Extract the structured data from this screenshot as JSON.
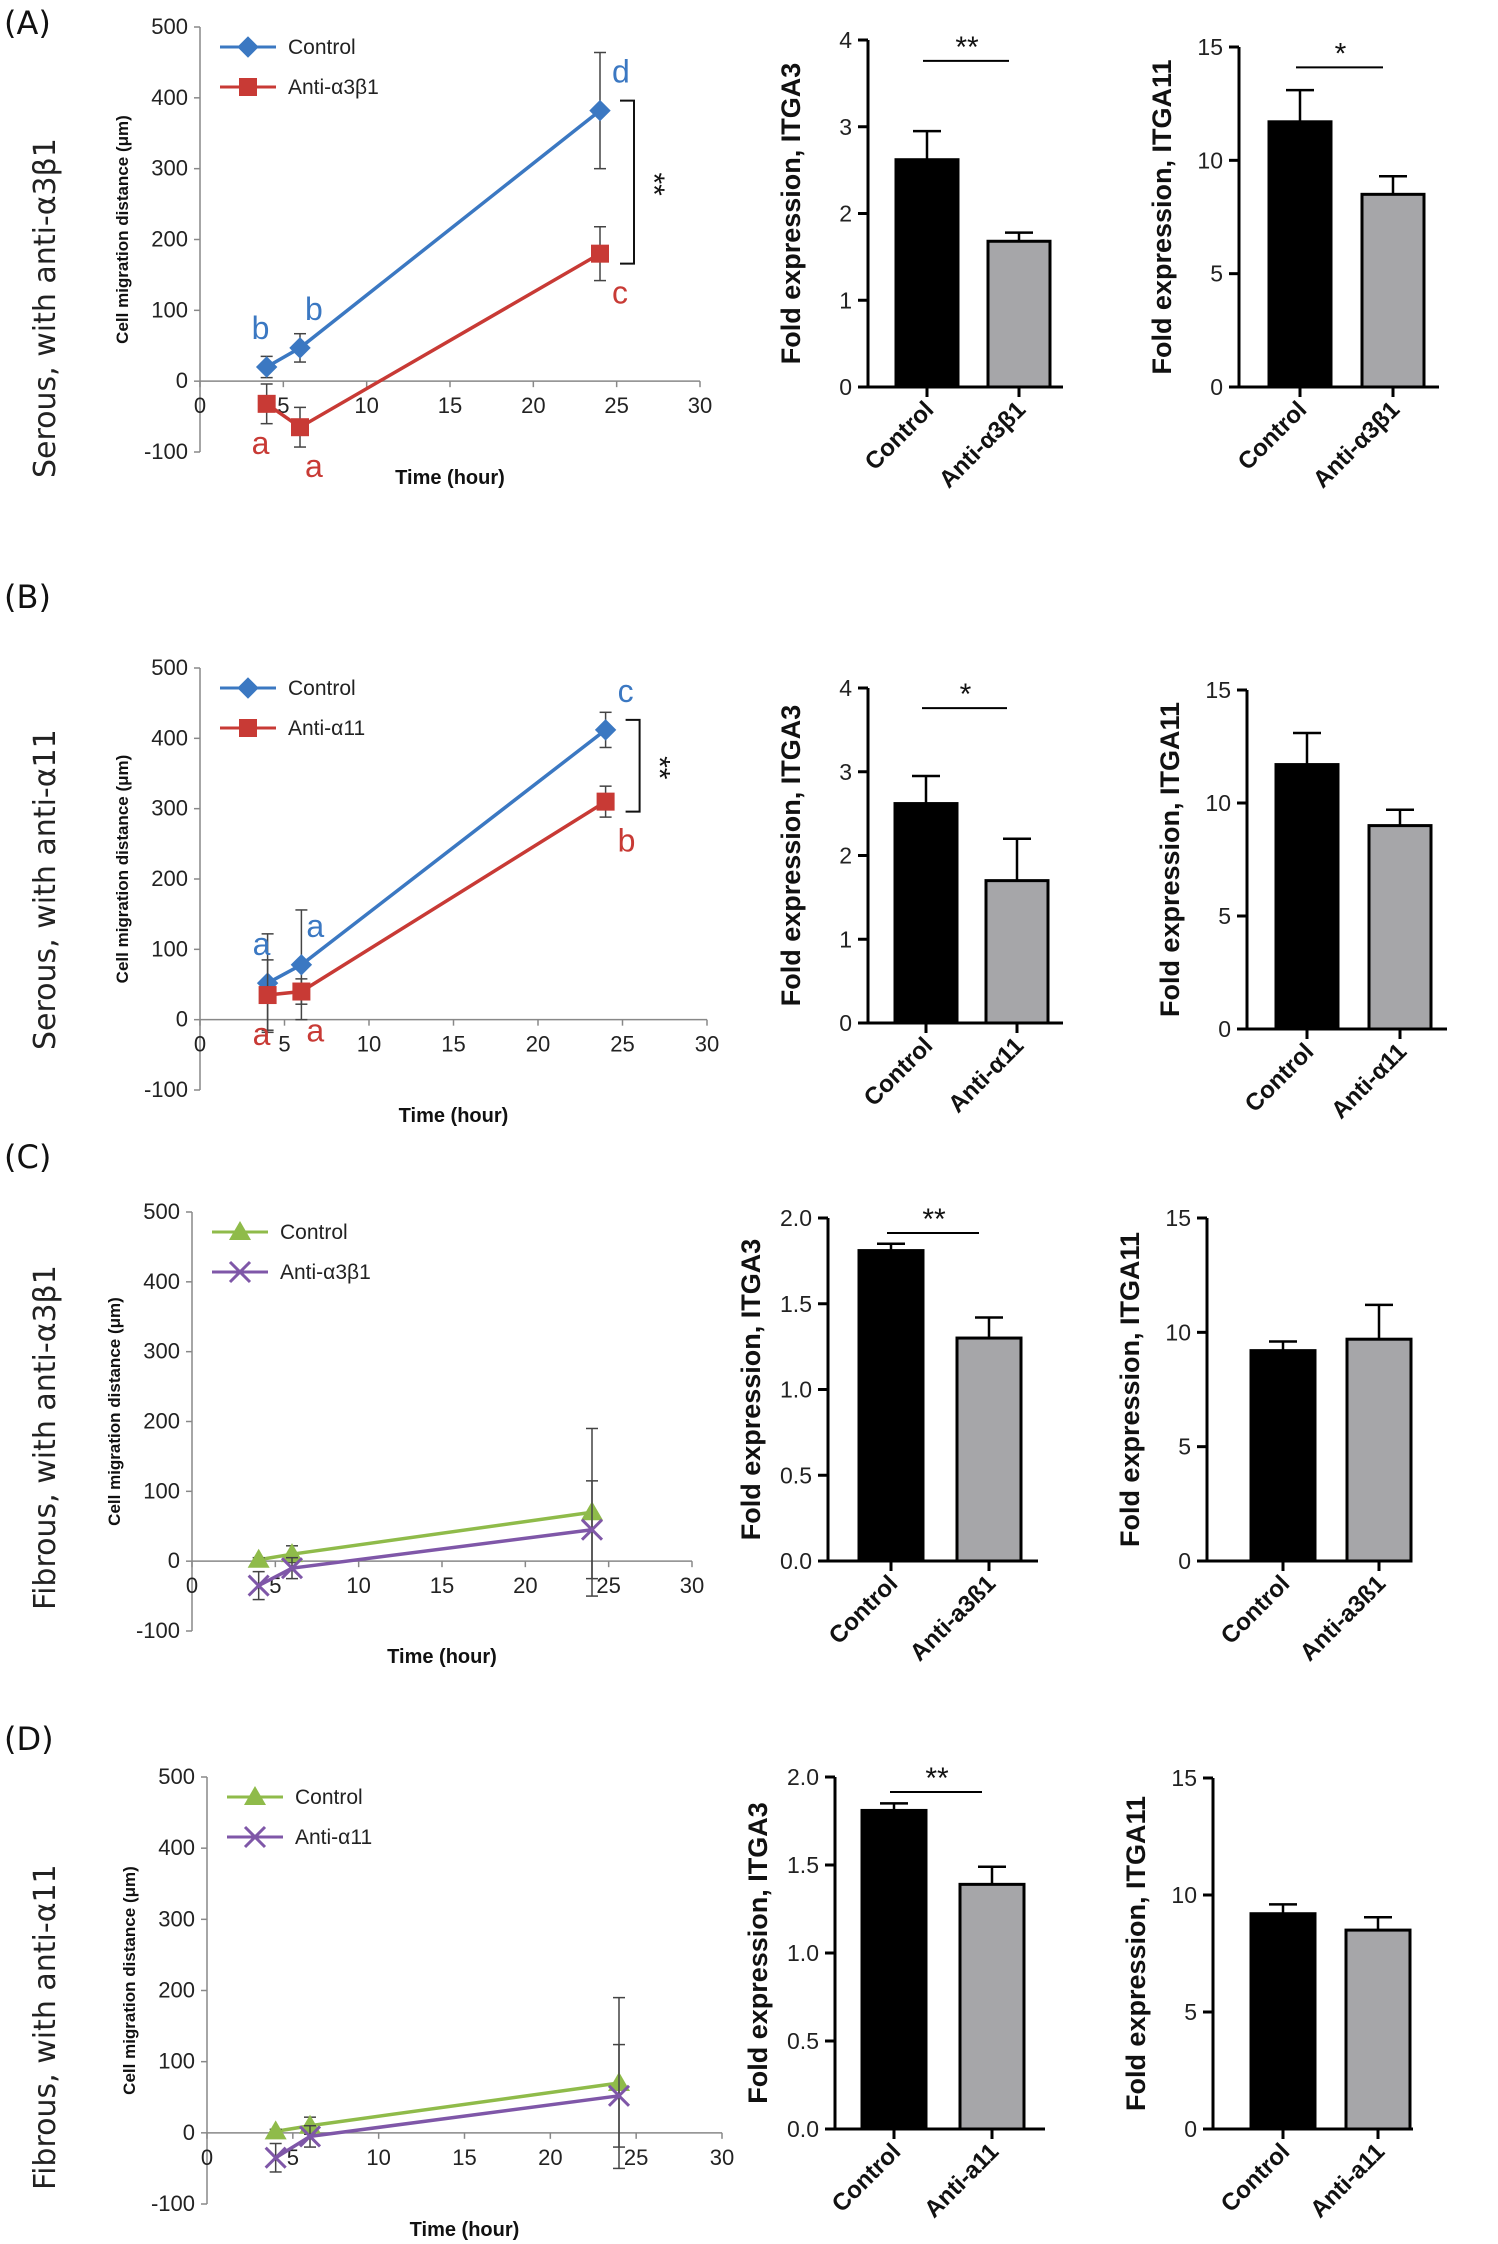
{
  "panels": [
    {
      "id": "A",
      "label": "(A)",
      "row_label": "Serous, with anti-α3β1"
    },
    {
      "id": "B",
      "label": "(B)",
      "row_label": "Serous, with anti-α11"
    },
    {
      "id": "C",
      "label": "(C)",
      "row_label": "Fibrous, with anti-α3β1"
    },
    {
      "id": "D",
      "label": "(D)",
      "row_label": "Fibrous, with anti-α11"
    }
  ],
  "chart_data": [
    {
      "panel": "A",
      "type": "line",
      "ylabel": "Cell migration distance (μm)",
      "xlabel": "Time (hour)",
      "xlim": [
        0,
        30
      ],
      "ylim": [
        -100,
        500
      ],
      "xticks": [
        0,
        5,
        10,
        15,
        20,
        25,
        30
      ],
      "yticks": [
        -100,
        0,
        100,
        200,
        300,
        400,
        500
      ],
      "series": [
        {
          "name": "Control",
          "color": "#3b78c2",
          "marker": "diamond",
          "x": [
            4,
            6,
            24
          ],
          "y": [
            20,
            47,
            382
          ],
          "err": [
            15,
            20,
            82
          ],
          "letters": [
            "b",
            "b",
            "d"
          ]
        },
        {
          "name": "Anti-α3β1",
          "color": "#c83a35",
          "marker": "square",
          "x": [
            4,
            6,
            24
          ],
          "y": [
            -32,
            -65,
            180
          ],
          "err": [
            28,
            28,
            38
          ],
          "letters": [
            "a",
            "a",
            "c"
          ]
        }
      ],
      "significance": "**"
    },
    {
      "panel": "A",
      "type": "bar",
      "ylabel": "Fold expression, ITGA3",
      "ylim": [
        0,
        4
      ],
      "yticks": [
        0,
        1,
        2,
        3,
        4
      ],
      "categories": [
        "Control",
        "Anti-α3β1"
      ],
      "values": [
        2.62,
        1.68
      ],
      "errors": [
        0.33,
        0.1
      ],
      "significance": "**"
    },
    {
      "panel": "A",
      "type": "bar",
      "ylabel": "Fold expression, ITGA11",
      "ylim": [
        0,
        15
      ],
      "yticks": [
        0,
        5,
        10,
        15
      ],
      "categories": [
        "Control",
        "Anti-α3β1"
      ],
      "values": [
        11.7,
        8.5
      ],
      "errors": [
        1.4,
        0.8
      ],
      "significance": "*"
    },
    {
      "panel": "B",
      "type": "line",
      "ylabel": "Cell migration distance (μm)",
      "xlabel": "Time (hour)",
      "xlim": [
        0,
        30
      ],
      "ylim": [
        -100,
        500
      ],
      "xticks": [
        0,
        5,
        10,
        15,
        20,
        25,
        30
      ],
      "yticks": [
        -100,
        0,
        100,
        200,
        300,
        400,
        500
      ],
      "series": [
        {
          "name": "Control",
          "color": "#3b78c2",
          "marker": "diamond",
          "x": [
            4,
            6,
            24
          ],
          "y": [
            52,
            78,
            412
          ],
          "err": [
            70,
            78,
            25
          ],
          "letters": [
            "a",
            "a",
            "c"
          ]
        },
        {
          "name": "Anti-α11",
          "color": "#c83a35",
          "marker": "square",
          "x": [
            4,
            6,
            24
          ],
          "y": [
            35,
            40,
            310
          ],
          "err": [
            50,
            18,
            22
          ],
          "letters": [
            "a",
            "a",
            "b"
          ]
        }
      ],
      "significance": "**"
    },
    {
      "panel": "B",
      "type": "bar",
      "ylabel": "Fold expression, ITGA3",
      "ylim": [
        0,
        4
      ],
      "yticks": [
        0,
        1,
        2,
        3,
        4
      ],
      "categories": [
        "Control",
        "Anti-α11"
      ],
      "values": [
        2.62,
        1.7
      ],
      "errors": [
        0.33,
        0.5
      ],
      "significance": "*"
    },
    {
      "panel": "B",
      "type": "bar",
      "ylabel": "Fold expression, ITGA11",
      "ylim": [
        0,
        15
      ],
      "yticks": [
        0,
        5,
        10,
        15
      ],
      "categories": [
        "Control",
        "Anti-α11"
      ],
      "values": [
        11.7,
        9.0
      ],
      "errors": [
        1.4,
        0.7
      ],
      "significance": ""
    },
    {
      "panel": "C",
      "type": "line",
      "ylabel": "Cell migration distance (μm)",
      "xlabel": "Time (hour)",
      "xlim": [
        0,
        30
      ],
      "ylim": [
        -100,
        500
      ],
      "xticks": [
        0,
        5,
        10,
        15,
        20,
        25,
        30
      ],
      "yticks": [
        -100,
        0,
        100,
        200,
        300,
        400,
        500
      ],
      "series": [
        {
          "name": "Control",
          "color": "#8fbb4a",
          "marker": "triangle",
          "x": [
            4,
            6,
            24
          ],
          "y": [
            2,
            10,
            70
          ],
          "err": [
            3,
            12,
            120
          ],
          "letters": [
            "",
            "",
            ""
          ]
        },
        {
          "name": "Anti-α3β1",
          "color": "#7f57a8",
          "marker": "x",
          "x": [
            4,
            6,
            24
          ],
          "y": [
            -35,
            -10,
            45
          ],
          "err": [
            20,
            15,
            70
          ],
          "letters": [
            "",
            "",
            ""
          ]
        }
      ],
      "significance": ""
    },
    {
      "panel": "C",
      "type": "bar",
      "ylabel": "Fold expression, ITGA3",
      "ylim": [
        0,
        2.0
      ],
      "yticks": [
        0.0,
        0.5,
        1.0,
        1.5,
        2.0
      ],
      "categories": [
        "Control",
        "Anti-a3ß1"
      ],
      "values": [
        1.81,
        1.3
      ],
      "errors": [
        0.04,
        0.12
      ],
      "significance": "**"
    },
    {
      "panel": "C",
      "type": "bar",
      "ylabel": "Fold expression, ITGA11",
      "ylim": [
        0,
        15
      ],
      "yticks": [
        0,
        5,
        10,
        15
      ],
      "categories": [
        "Control",
        "Anti-a3ß1"
      ],
      "values": [
        9.2,
        9.7
      ],
      "errors": [
        0.4,
        1.5
      ],
      "significance": ""
    },
    {
      "panel": "D",
      "type": "line",
      "ylabel": "Cell migration distance (μm)",
      "xlabel": "Time (hour)",
      "xlim": [
        0,
        30
      ],
      "ylim": [
        -100,
        500
      ],
      "xticks": [
        0,
        5,
        10,
        15,
        20,
        25,
        30
      ],
      "yticks": [
        -100,
        0,
        100,
        200,
        300,
        400,
        500
      ],
      "series": [
        {
          "name": "Control",
          "color": "#8fbb4a",
          "marker": "triangle",
          "x": [
            4,
            6,
            24
          ],
          "y": [
            2,
            10,
            70
          ],
          "err": [
            3,
            12,
            120
          ],
          "letters": [
            "",
            "",
            ""
          ]
        },
        {
          "name": "Anti-α11",
          "color": "#7f57a8",
          "marker": "x",
          "x": [
            4,
            6,
            24
          ],
          "y": [
            -35,
            -5,
            52
          ],
          "err": [
            20,
            15,
            72
          ],
          "letters": [
            "",
            "",
            ""
          ]
        }
      ],
      "significance": ""
    },
    {
      "panel": "D",
      "type": "bar",
      "ylabel": "Fold expression, ITGA3",
      "ylim": [
        0,
        2.0
      ],
      "yticks": [
        0.0,
        0.5,
        1.0,
        1.5,
        2.0
      ],
      "categories": [
        "Control",
        "Anti-a11"
      ],
      "values": [
        1.81,
        1.39
      ],
      "errors": [
        0.04,
        0.1
      ],
      "significance": "**"
    },
    {
      "panel": "D",
      "type": "bar",
      "ylabel": "Fold expression, ITGA11",
      "ylim": [
        0,
        15
      ],
      "yticks": [
        0,
        5,
        10,
        15
      ],
      "categories": [
        "Control",
        "Anti-a11"
      ],
      "values": [
        9.2,
        8.5
      ],
      "errors": [
        0.4,
        0.55
      ],
      "significance": ""
    }
  ]
}
